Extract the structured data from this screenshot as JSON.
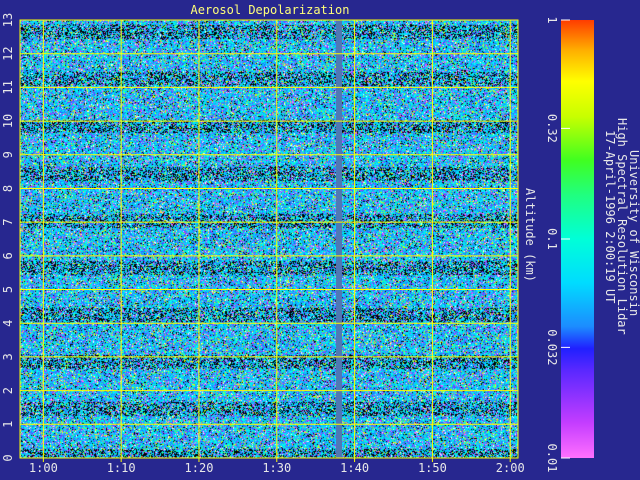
{
  "chart_data": {
    "type": "heatmap",
    "title": "Aerosol Depolarization",
    "ylabel": "Altitude (km)",
    "xlabel": "",
    "x_ticks": [
      "1:00",
      "1:10",
      "1:20",
      "1:30",
      "1:40",
      "1:50",
      "2:00"
    ],
    "x_range_minutes": [
      57,
      121
    ],
    "y_ticks": [
      0,
      1,
      2,
      3,
      4,
      5,
      6,
      7,
      8,
      9,
      10,
      11,
      12,
      13
    ],
    "ylim": [
      0,
      13
    ],
    "grid": true,
    "colorbar": {
      "scale": "log",
      "range": [
        0.01,
        1
      ],
      "tick_labels": [
        "0.01",
        "0.032",
        "0.1",
        "0.32",
        "1"
      ],
      "tick_values": [
        0.01,
        0.032,
        0.1,
        0.32,
        1
      ]
    },
    "data_gap_time": "1:38",
    "noise_color_distribution": "mostly cyan/blue/purple with scattered green, yellow, pink and black speckle throughout all altitudes",
    "colors": {
      "background": "#27278f",
      "grid": "#ffff00",
      "gap_column": "#5078b4"
    }
  },
  "sidebar": {
    "caption_lines": [
      "University of Wisconsin",
      "High Spectral Resolution Lidar",
      "17-April-1996  2:00:19 UT"
    ]
  }
}
